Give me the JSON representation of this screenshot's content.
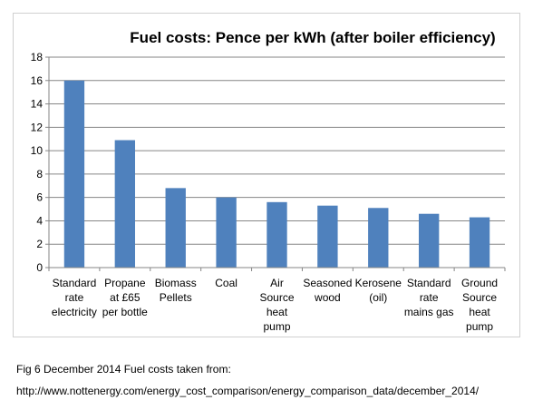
{
  "chart_data": {
    "type": "bar",
    "title": "Fuel costs: Pence per kWh (after boiler efficiency)",
    "xlabel": "",
    "ylabel": "",
    "ylim": [
      0,
      18
    ],
    "yticks": [
      0,
      2,
      4,
      6,
      8,
      10,
      12,
      14,
      16,
      18
    ],
    "grid": true,
    "legend": "none",
    "bar_color": "#4f81bd",
    "categories": [
      [
        "Standard",
        "rate",
        "electricity"
      ],
      [
        "Propane",
        "at £65",
        "per bottle"
      ],
      [
        "Biomass",
        "Pellets"
      ],
      [
        "Coal"
      ],
      [
        "Air",
        "Source",
        "heat",
        "pump"
      ],
      [
        "Seasoned",
        "wood"
      ],
      [
        "Kerosene",
        "(oil)"
      ],
      [
        "Standard",
        "rate",
        "mains gas"
      ],
      [
        "Ground",
        "Source",
        "heat",
        "pump"
      ]
    ],
    "values": [
      16.0,
      10.9,
      6.8,
      6.0,
      5.6,
      5.3,
      5.1,
      4.6,
      4.3
    ]
  },
  "caption": {
    "line1": "Fig 6 December 2014 Fuel costs taken from:",
    "line2": "http://www.nottenergy.com/energy_cost_comparison/energy_comparison_data/december_2014/"
  }
}
